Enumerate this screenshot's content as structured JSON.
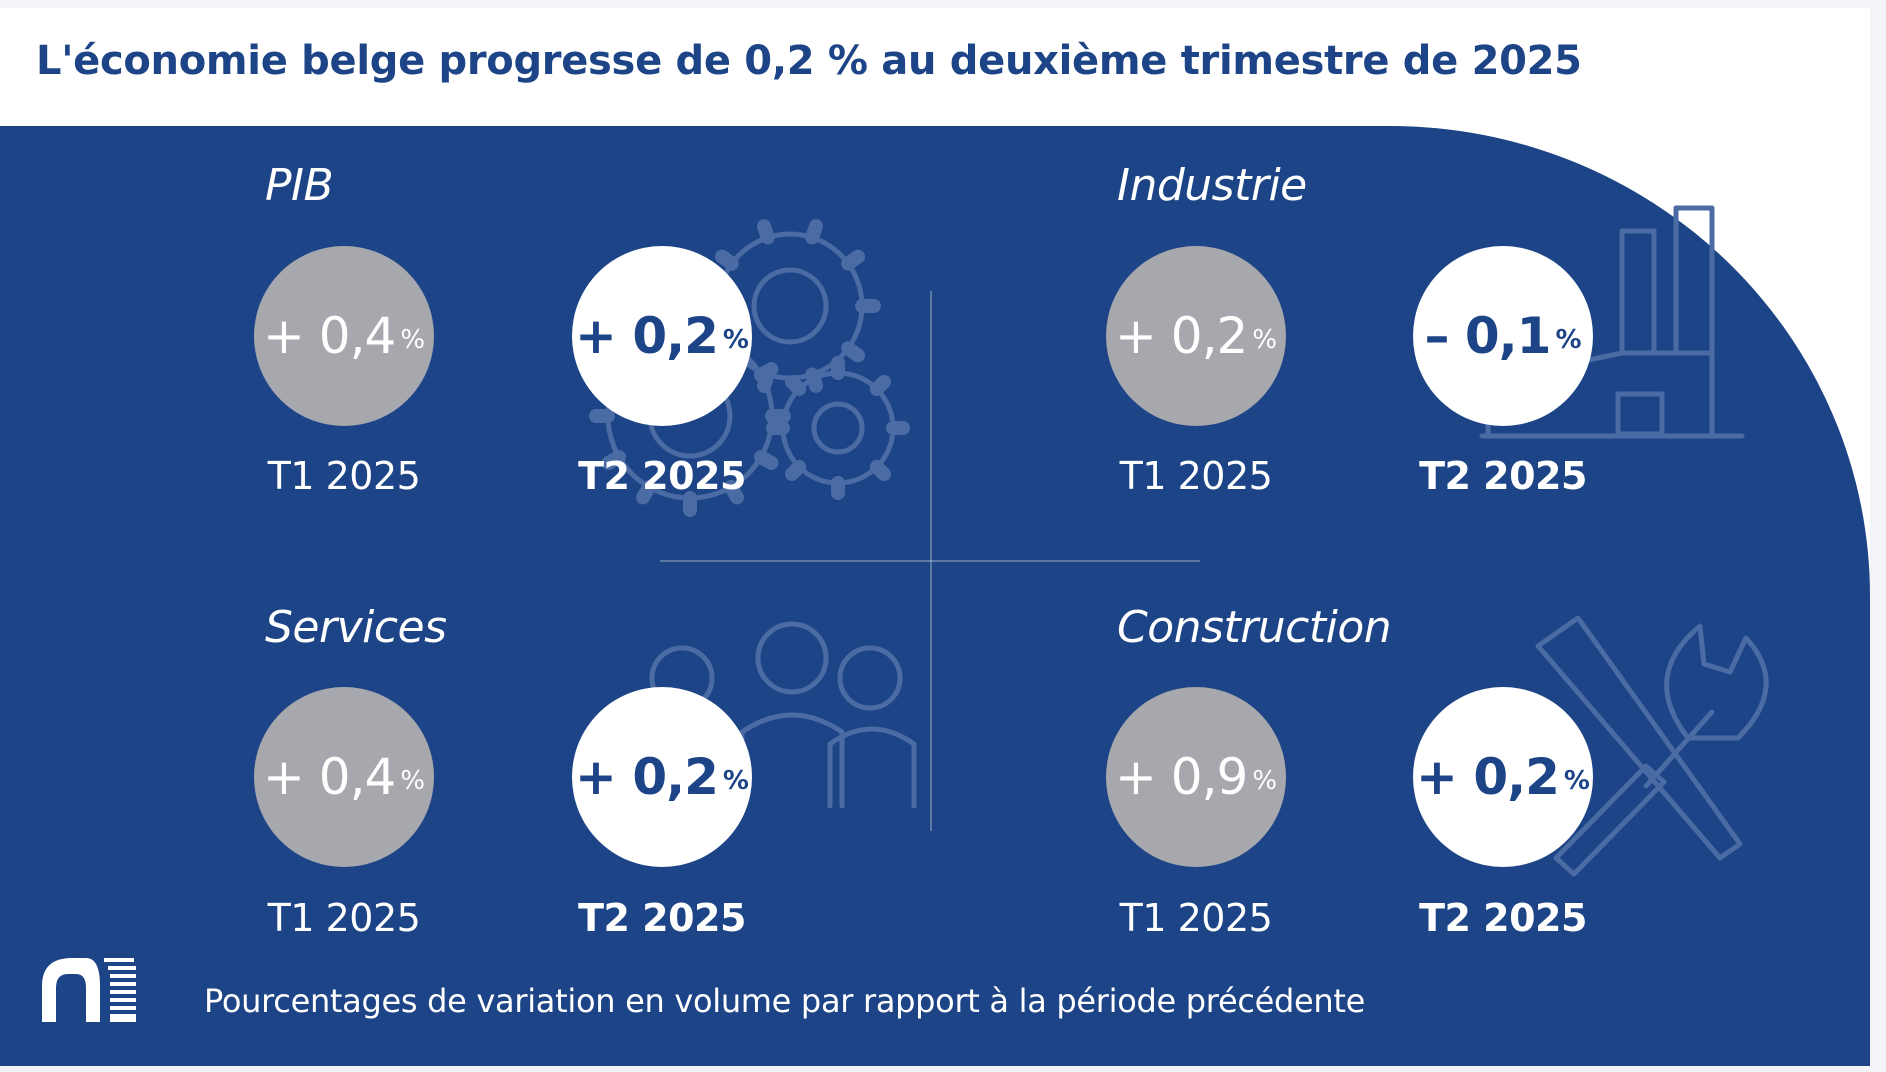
{
  "title": "L'économie belge progresse de 0,2 % au deuxième trimestre de 2025",
  "footnote": "Pourcentages de variation en volume par rapport à la période précédente",
  "colors": {
    "primary": "#1d4486",
    "previous_bubble": "#a6a8ad",
    "current_bubble": "#ffffff"
  },
  "icons": [
    "gears-icon",
    "factory-icon",
    "people-icon",
    "tools-icon",
    "bank-logo"
  ],
  "chart_data": {
    "type": "table",
    "unit": "%",
    "periods": [
      "T1 2025",
      "T2 2025"
    ],
    "quadrants": [
      {
        "name": "PIB",
        "values": [
          0.4,
          0.2
        ],
        "labels": [
          {
            "sign": "+",
            "value": "0,4",
            "unit": "%",
            "period": "T1 2025"
          },
          {
            "sign": "+",
            "value": "0,2",
            "unit": "%",
            "period": "T2 2025"
          }
        ]
      },
      {
        "name": "Industrie",
        "values": [
          0.2,
          -0.1
        ],
        "labels": [
          {
            "sign": "+",
            "value": "0,2",
            "unit": "%",
            "period": "T1 2025"
          },
          {
            "sign": "–",
            "value": "0,1",
            "unit": "%",
            "period": "T2 2025"
          }
        ]
      },
      {
        "name": "Services",
        "values": [
          0.4,
          0.2
        ],
        "labels": [
          {
            "sign": "+",
            "value": "0,4",
            "unit": "%",
            "period": "T1 2025"
          },
          {
            "sign": "+",
            "value": "0,2",
            "unit": "%",
            "period": "T2 2025"
          }
        ]
      },
      {
        "name": "Construction",
        "values": [
          0.9,
          0.2
        ],
        "labels": [
          {
            "sign": "+",
            "value": "0,9",
            "unit": "%",
            "period": "T1 2025"
          },
          {
            "sign": "+",
            "value": "0,2",
            "unit": "%",
            "period": "T2 2025"
          }
        ]
      }
    ]
  }
}
